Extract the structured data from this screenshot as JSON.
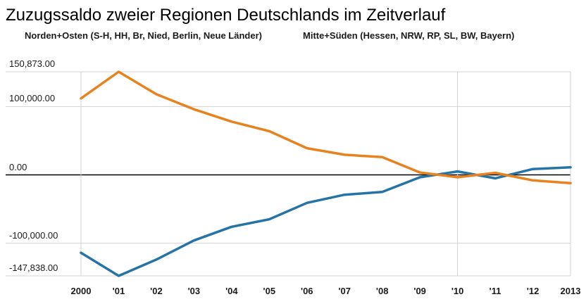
{
  "title": "Zuzugssaldo zweier Regionen Deutschlands im Zeitverlauf",
  "legend": {
    "items": [
      {
        "label": "Norden+Osten (S-H, HH, Br, Nied, Berlin, Neue Länder)",
        "color": "#2673A6"
      },
      {
        "label": "Mitte+Süden (Hessen, NRW, RP, SL, BW, Bayern)",
        "color": "#E8821E"
      }
    ],
    "position": "top"
  },
  "chart_data": {
    "type": "line",
    "title": "Zuzugssaldo zweier Regionen Deutschlands im Zeitverlauf",
    "x": [
      2000,
      2001,
      2002,
      2003,
      2004,
      2005,
      2006,
      2007,
      2008,
      2009,
      2010,
      2011,
      2012,
      2013
    ],
    "x_labels": [
      "2000",
      "'01",
      "'02",
      "'03",
      "'04",
      "'05",
      "'06",
      "'07",
      "'08",
      "'09",
      "'10",
      "'11",
      "'12",
      "2013"
    ],
    "series": [
      {
        "name": "Norden+Osten (S-H, HH, Br, Nied, Berlin, Neue Länder)",
        "color": "#2673A6",
        "values": [
          -114000,
          -147838,
          -124000,
          -96000,
          -76000,
          -65000,
          -41000,
          -29000,
          -25000,
          -3500,
          5000,
          -5000,
          8500,
          11000
        ]
      },
      {
        "name": "Mitte+Süden (Hessen, NRW, RP, SL, BW, Bayern)",
        "color": "#E8821E",
        "values": [
          112000,
          150873,
          118000,
          96000,
          78000,
          64000,
          39000,
          29500,
          26000,
          3500,
          -3500,
          3000,
          -8000,
          -12000
        ]
      }
    ],
    "yticks": [
      {
        "value": 150873,
        "label": "150,873.00"
      },
      {
        "value": 100000,
        "label": "100,000.00"
      },
      {
        "value": 0,
        "label": "0.00"
      },
      {
        "value": -100000,
        "label": "-100,000.00"
      },
      {
        "value": -147838,
        "label": "-147,838.00"
      }
    ],
    "ylim": [
      -147838,
      150873
    ],
    "grid_vertical_years": [
      2000,
      2010
    ],
    "zero_line": true,
    "legend_position": "top",
    "grid": true,
    "colors": {
      "grid": "#D3D3D3",
      "zero_line": "#000000",
      "tick_text": "#1a1a1a",
      "title_text": "#000000"
    }
  }
}
